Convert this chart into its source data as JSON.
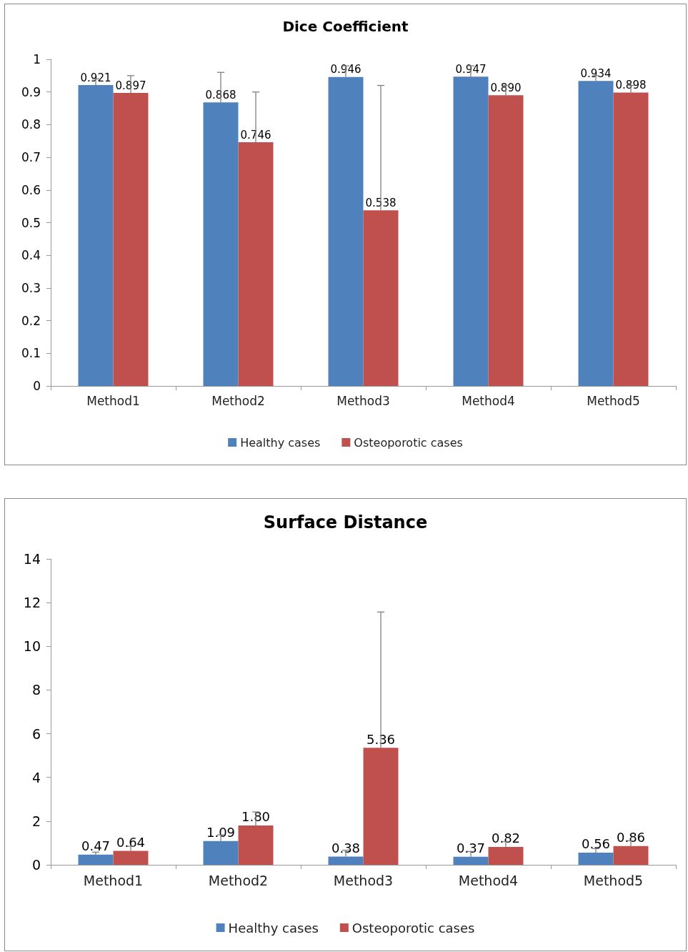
{
  "chart_data": [
    {
      "type": "bar",
      "title": "Dice Coefficient",
      "categories": [
        "Method1",
        "Method2",
        "Method3",
        "Method4",
        "Method5"
      ],
      "series": [
        {
          "name": "Healthy cases",
          "color": "#4f81bd",
          "values": [
            0.921,
            0.868,
            0.946,
            0.947,
            0.934
          ],
          "errors": [
            [
              0.921,
              0.94
            ],
            [
              0.868,
              0.96
            ],
            [
              0.946,
              0.98
            ],
            [
              0.947,
              0.98
            ],
            [
              0.934,
              0.95
            ]
          ],
          "value_labels": [
            "0.921",
            "0.868",
            "0.946",
            "0.947",
            "0.934"
          ]
        },
        {
          "name": "Osteoporotic cases",
          "color": "#c0504d",
          "values": [
            0.897,
            0.746,
            0.538,
            0.89,
            0.898
          ],
          "errors": [
            [
              0.897,
              0.95
            ],
            [
              0.746,
              0.9
            ],
            [
              0.538,
              0.92
            ],
            [
              0.89,
              0.92
            ],
            [
              0.898,
              0.92
            ]
          ],
          "value_labels": [
            "0.897",
            "0.746",
            "0.538",
            "0.890",
            "0.898"
          ]
        }
      ],
      "ylim": [
        0,
        1
      ],
      "yticks": [
        0,
        0.1,
        0.2,
        0.3,
        0.4,
        0.5,
        0.6,
        0.7,
        0.8,
        0.9,
        1
      ],
      "grid": false,
      "legend": "bottom"
    },
    {
      "type": "bar",
      "title": "Surface Distance",
      "categories": [
        "Method1",
        "Method2",
        "Method3",
        "Method4",
        "Method5"
      ],
      "series": [
        {
          "name": "Healthy cases",
          "color": "#4f81bd",
          "values": [
            0.47,
            1.09,
            0.38,
            0.37,
            0.56
          ],
          "errors": [
            [
              0.47,
              0.58
            ],
            [
              1.09,
              1.37
            ],
            [
              0.38,
              0.67
            ],
            [
              0.37,
              0.61
            ],
            [
              0.56,
              0.74
            ]
          ],
          "value_labels": [
            "0.47",
            "1.09",
            "0.38",
            "0.37",
            "0.56"
          ]
        },
        {
          "name": "Osteoporotic cases",
          "color": "#c0504d",
          "values": [
            0.64,
            1.8,
            5.36,
            0.82,
            0.86
          ],
          "errors": [
            [
              0.64,
              0.85
            ],
            [
              1.8,
              2.42
            ],
            [
              5.36,
              11.57
            ],
            [
              0.82,
              1.06
            ],
            [
              0.86,
              1.1
            ]
          ],
          "value_labels": [
            "0.64",
            "1.80",
            "5.36",
            "0.82",
            "0.86"
          ]
        }
      ],
      "ylim": [
        0,
        14
      ],
      "yticks": [
        0,
        2,
        4,
        6,
        8,
        10,
        12,
        14
      ],
      "grid": false,
      "legend": "bottom"
    }
  ]
}
